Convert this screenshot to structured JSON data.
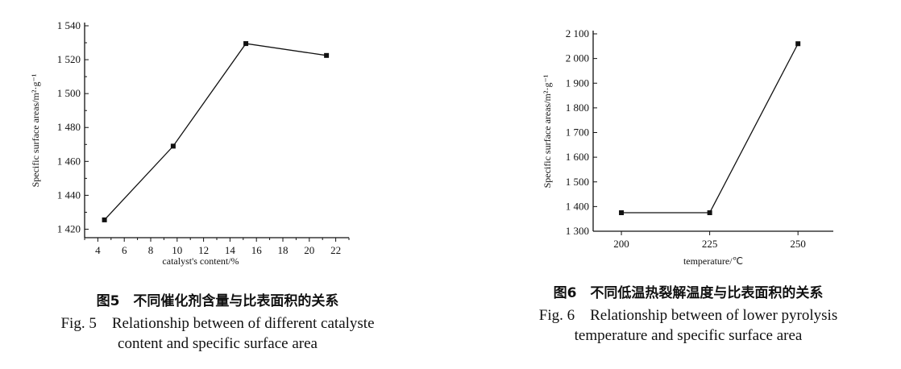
{
  "chart_data": [
    {
      "type": "line",
      "x": [
        4.5,
        9.7,
        15.2,
        21.3
      ],
      "series": [
        {
          "values": [
            1425.5,
            1469,
            1529.5,
            1522.5
          ]
        }
      ],
      "xlabel": "catalyst's content/%",
      "ylabel": "Specific surface areas/m²·g⁻¹",
      "xlim": [
        3,
        23
      ],
      "ylim": [
        1415,
        1540
      ],
      "xticks": [
        "4",
        "6",
        "8",
        "10",
        "12",
        "14",
        "16",
        "18",
        "20",
        "22"
      ],
      "yticks": [
        "1 420",
        "1 440",
        "1 460",
        "1 480",
        "1 500",
        "1 520",
        "1 540"
      ],
      "grid": false
    },
    {
      "type": "line",
      "x": [
        200,
        225,
        250
      ],
      "series": [
        {
          "values": [
            1375,
            1375,
            2060
          ]
        }
      ],
      "xlabel": "temperature/℃",
      "ylabel": "Specific surface areas/m²·g⁻¹",
      "xlim": [
        192,
        260
      ],
      "ylim": [
        1300,
        2100
      ],
      "xticks": [
        "200",
        "225",
        "250"
      ],
      "yticks": [
        "1 300",
        "1 400",
        "1 500",
        "1 600",
        "1 700",
        "1 800",
        "1 900",
        "2 000",
        "2 100"
      ],
      "grid": false
    }
  ],
  "captions": [
    {
      "zh": "图5　不同催化剂含量与比表面积的关系",
      "en1": "Fig. 5　Relationship between of different catalyste",
      "en2": "content and specific surface area"
    },
    {
      "zh": "图6　不同低温热裂解温度与比表面积的关系",
      "en1": "Fig. 6　Relationship between of lower pyrolysis",
      "en2": "temperature and specific surface area"
    }
  ]
}
